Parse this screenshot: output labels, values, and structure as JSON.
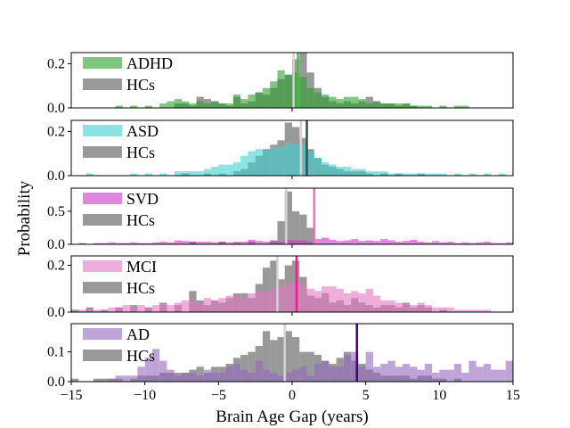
{
  "chart_data": {
    "type": "bar",
    "subtype": "stacked-panel overlapping histograms",
    "xlabel": "Brain Age Gap (years)",
    "ylabel": "Probability",
    "xlim": [
      -15,
      15
    ],
    "xticks": [
      -15,
      -10,
      -5,
      0,
      5,
      10,
      15
    ],
    "xtick_labels": [
      "−15",
      "−10",
      "−5",
      "0",
      "5",
      "10",
      "15"
    ],
    "bin_start": -15,
    "bin_width": 0.5,
    "grid": false,
    "legend_placement": "upper-left",
    "reference_color": "#808080",
    "reference_mean_color": "#d3d3d3",
    "panels": [
      {
        "group": "ADHD",
        "reference": "HCs",
        "color": "#2ca02c",
        "mean_color": "#33cc33",
        "ylim": [
          0,
          0.25
        ],
        "yticks": [
          0,
          0.2
        ],
        "ytick_labels": [
          "0.0",
          "0.2"
        ],
        "reference_mean": 0.1,
        "group_mean": 0.4,
        "reference_values": [
          0,
          0,
          0,
          0,
          0,
          0,
          0,
          0,
          0,
          0,
          0,
          0,
          0,
          0,
          0.02,
          0.02,
          0.01,
          0.05,
          0.04,
          0.03,
          0.02,
          0.01,
          0.05,
          0.02,
          0.03,
          0.07,
          0.06,
          0.09,
          0.13,
          0.15,
          0.22,
          0.25,
          0.16,
          0.09,
          0.05,
          0.03,
          0.02,
          0.03,
          0.02,
          0.03,
          0.05,
          0.03,
          0.02,
          0.02,
          0.01,
          0.02,
          0.01,
          0,
          0,
          0,
          0,
          0,
          0,
          0,
          0,
          0,
          0,
          0,
          0,
          0
        ],
        "group_values": [
          0,
          0,
          0,
          0,
          0,
          0,
          0.01,
          0,
          0.01,
          0,
          0.01,
          0,
          0.02,
          0.03,
          0.04,
          0.03,
          0.02,
          0.03,
          0.02,
          0.03,
          0.02,
          0.02,
          0.06,
          0.04,
          0.06,
          0.07,
          0.09,
          0.12,
          0.17,
          0.15,
          0.16,
          0.14,
          0.09,
          0.07,
          0.06,
          0.05,
          0.04,
          0.05,
          0.05,
          0.04,
          0.02,
          0.03,
          0.02,
          0.02,
          0.02,
          0.02,
          0.01,
          0.01,
          0.01,
          0,
          0.01,
          0,
          0.01,
          0.01,
          0,
          0,
          0,
          0,
          0,
          0
        ]
      },
      {
        "group": "ASD",
        "reference": "HCs",
        "color": "#3fd0d0",
        "mean_color": "#2f4f4f",
        "ylim": [
          0,
          0.25
        ],
        "yticks": [
          0,
          0.2
        ],
        "ytick_labels": [
          "0.0",
          "0.2"
        ],
        "reference_mean": 0.6,
        "group_mean": 1.0,
        "reference_values": [
          0,
          0,
          0,
          0,
          0,
          0,
          0,
          0,
          0,
          0,
          0,
          0,
          0,
          0,
          0,
          0.01,
          0,
          0,
          0.01,
          0,
          0.01,
          0,
          0.02,
          0.03,
          0.06,
          0.09,
          0.12,
          0.14,
          0.16,
          0.24,
          0.22,
          0.17,
          0.12,
          0.08,
          0.05,
          0.04,
          0.03,
          0.02,
          0.02,
          0.02,
          0.01,
          0,
          0.01,
          0,
          0.01,
          0,
          0,
          0.01,
          0,
          0,
          0,
          0,
          0,
          0,
          0,
          0,
          0,
          0,
          0,
          0
        ],
        "group_values": [
          0,
          0,
          0.01,
          0,
          0,
          0,
          0,
          0,
          0.01,
          0,
          0.01,
          0,
          0.01,
          0,
          0.02,
          0.02,
          0.02,
          0.02,
          0.03,
          0.04,
          0.05,
          0.05,
          0.06,
          0.09,
          0.11,
          0.12,
          0.12,
          0.13,
          0.13,
          0.15,
          0.14,
          0.14,
          0.11,
          0.08,
          0.06,
          0.05,
          0.04,
          0.04,
          0.03,
          0.03,
          0.02,
          0.02,
          0.02,
          0.01,
          0.01,
          0.01,
          0.01,
          0.01,
          0.01,
          0.01,
          0.01,
          0,
          0.01,
          0,
          0.01,
          0,
          0.01,
          0,
          0.01,
          0
        ]
      },
      {
        "group": "SVD",
        "reference": "HCs",
        "color": "#cc33cc",
        "mean_color": "#ff69b4",
        "ylim": [
          0,
          0.85
        ],
        "yticks": [
          0,
          0.5
        ],
        "ytick_labels": [
          "0.0",
          "0.5"
        ],
        "reference_mean": -0.4,
        "group_mean": 1.5,
        "reference_values": [
          0,
          0,
          0,
          0,
          0,
          0,
          0,
          0,
          0,
          0,
          0,
          0,
          0,
          0,
          0,
          0,
          0.04,
          0,
          0,
          0,
          0.04,
          0,
          0.02,
          0,
          0.04,
          0,
          0,
          0.06,
          0.35,
          0.8,
          0.5,
          0.45,
          0.25,
          0,
          0,
          0,
          0,
          0,
          0,
          0,
          0,
          0,
          0,
          0,
          0,
          0,
          0,
          0,
          0,
          0,
          0,
          0,
          0,
          0,
          0,
          0,
          0,
          0,
          0,
          0
        ],
        "group_values": [
          0,
          0.02,
          0,
          0.02,
          0.02,
          0.03,
          0.02,
          0.02,
          0.03,
          0.02,
          0.02,
          0.03,
          0.04,
          0.03,
          0.06,
          0.05,
          0.04,
          0.04,
          0.04,
          0.03,
          0.04,
          0.03,
          0.04,
          0.04,
          0.07,
          0.05,
          0.04,
          0.05,
          0.04,
          0.07,
          0.06,
          0.06,
          0.04,
          0.08,
          0.1,
          0.07,
          0.05,
          0.06,
          0.08,
          0.05,
          0.06,
          0.05,
          0.08,
          0.06,
          0.04,
          0.05,
          0.07,
          0.04,
          0.03,
          0.05,
          0.03,
          0.04,
          0.02,
          0.03,
          0.02,
          0.03,
          0.04,
          0.02,
          0.02,
          0.03
        ]
      },
      {
        "group": "MCI",
        "reference": "HCs",
        "color": "#e377c2",
        "mean_color": "#ff1493",
        "ylim": [
          0,
          0.24
        ],
        "yticks": [
          0,
          0.2
        ],
        "ytick_labels": [
          "0.0",
          "0.2"
        ],
        "reference_mean": -1.0,
        "group_mean": 0.3,
        "reference_values": [
          0.01,
          0,
          0.02,
          0,
          0.01,
          0,
          0.02,
          0,
          0.03,
          0,
          0.02,
          0,
          0.04,
          0,
          0.03,
          0,
          0.09,
          0.05,
          0.03,
          0.05,
          0.04,
          0.06,
          0.08,
          0.08,
          0.06,
          0.12,
          0.19,
          0.22,
          0.14,
          0.2,
          0.22,
          0.15,
          0.07,
          0.06,
          0.08,
          0.04,
          0.05,
          0.03,
          0.06,
          0.04,
          0.03,
          0.02,
          0.03,
          0.03,
          0.02,
          0.04,
          0.02,
          0.03,
          0.02,
          0,
          0.01,
          0,
          0,
          0,
          0,
          0,
          0,
          0,
          0,
          0
        ],
        "group_values": [
          0.01,
          0.01,
          0.01,
          0.01,
          0.01,
          0.02,
          0.02,
          0.03,
          0.02,
          0.03,
          0.02,
          0.03,
          0.04,
          0.03,
          0.04,
          0.05,
          0.05,
          0.04,
          0.06,
          0.05,
          0.06,
          0.07,
          0.07,
          0.06,
          0.08,
          0.09,
          0.09,
          0.1,
          0.11,
          0.12,
          0.13,
          0.12,
          0.1,
          0.09,
          0.11,
          0.11,
          0.1,
          0.08,
          0.09,
          0.08,
          0.1,
          0.07,
          0.05,
          0.05,
          0.04,
          0.04,
          0.03,
          0.04,
          0.03,
          0.02,
          0.02,
          0.02,
          0.01,
          0.01,
          0.01,
          0.01,
          0.01,
          0,
          0,
          0
        ]
      },
      {
        "group": "AD",
        "reference": "HCs",
        "color": "#9467bd",
        "mean_color": "#4b0082",
        "ylim": [
          0,
          0.195
        ],
        "yticks": [
          0,
          0.1
        ],
        "ytick_labels": [
          "0.0",
          "0.1"
        ],
        "reference_mean": -0.5,
        "group_mean": 4.4,
        "reference_values": [
          0.01,
          0,
          0,
          0.01,
          0.01,
          0.01,
          0.01,
          0,
          0.01,
          0.02,
          0.02,
          0.02,
          0.03,
          0.03,
          0.03,
          0.03,
          0.04,
          0.05,
          0.03,
          0.05,
          0.05,
          0.06,
          0.08,
          0.09,
          0.1,
          0.12,
          0.17,
          0.14,
          0.15,
          0.17,
          0.15,
          0.1,
          0.1,
          0.09,
          0.07,
          0.06,
          0.08,
          0.1,
          0.07,
          0.06,
          0.04,
          0.03,
          0.02,
          0.02,
          0.02,
          0.02,
          0.01,
          0.02,
          0.02,
          0.01,
          0.01,
          0,
          0.01,
          0,
          0,
          0,
          0,
          0,
          0,
          0
        ],
        "group_values": [
          0,
          0,
          0,
          0,
          0,
          0.01,
          0.02,
          0.02,
          0.02,
          0.05,
          0.08,
          0.11,
          0.07,
          0.04,
          0.02,
          0.03,
          0.03,
          0.02,
          0.04,
          0.03,
          0.03,
          0.05,
          0.06,
          0.04,
          0.03,
          0.07,
          0.04,
          0.03,
          0.02,
          0.03,
          0.04,
          0.05,
          0.02,
          0.06,
          0.07,
          0.05,
          0.05,
          0.09,
          0.1,
          0.05,
          0.1,
          0.05,
          0.06,
          0.07,
          0.05,
          0.06,
          0.05,
          0.04,
          0.06,
          0.03,
          0.04,
          0.04,
          0.06,
          0.03,
          0.07,
          0.05,
          0.06,
          0.04,
          0.04,
          0.07
        ]
      }
    ]
  }
}
